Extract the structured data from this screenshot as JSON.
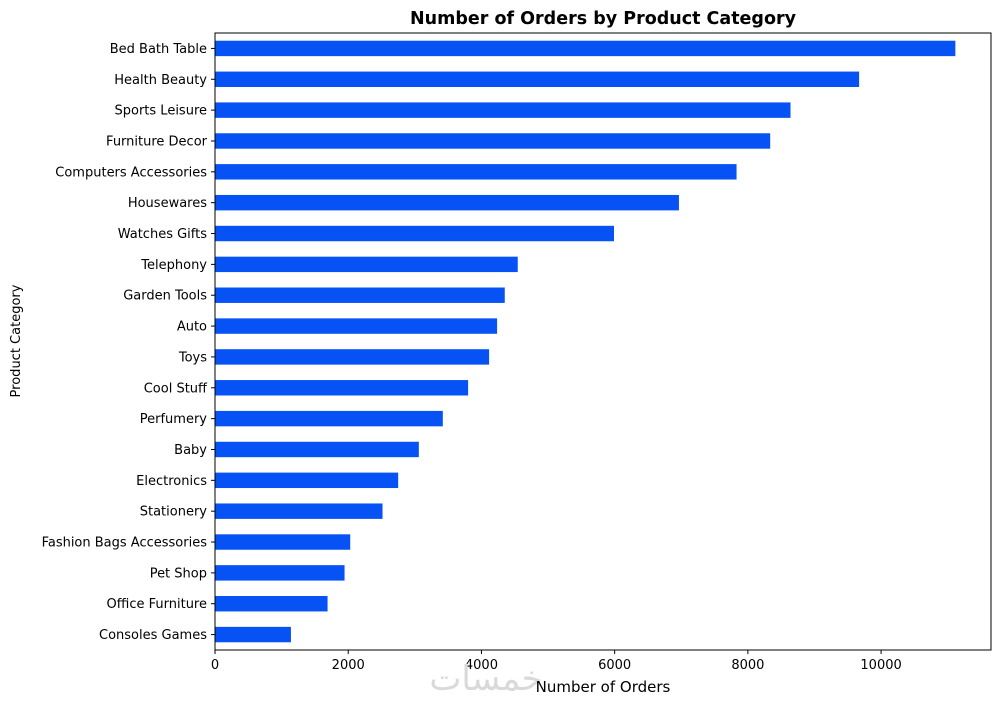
{
  "chart_data": {
    "type": "bar",
    "orientation": "horizontal",
    "title": "Number of Orders by Product Category",
    "xlabel": "Number of Orders",
    "ylabel": "Product Category",
    "xlim": [
      0,
      11650
    ],
    "xticks": [
      0,
      2000,
      4000,
      6000,
      8000,
      10000
    ],
    "grid": false,
    "bar_color": "#0652F5",
    "categories": [
      "Bed Bath Table",
      "Health Beauty",
      "Sports Leisure",
      "Furniture Decor",
      "Computers Accessories",
      "Housewares",
      "Watches Gifts",
      "Telephony",
      "Garden Tools",
      "Auto",
      "Toys",
      "Cool Stuff",
      "Perfumery",
      "Baby",
      "Electronics",
      "Stationery",
      "Fashion Bags Accessories",
      "Pet Shop",
      "Office Furniture",
      "Consoles Games"
    ],
    "values": [
      11115,
      9670,
      8640,
      8335,
      7830,
      6965,
      5990,
      4545,
      4350,
      4235,
      4115,
      3800,
      3420,
      3060,
      2750,
      2515,
      2030,
      1945,
      1690,
      1140
    ]
  },
  "watermark": {
    "text": "خمسات",
    "color": "#d9d9d9"
  }
}
